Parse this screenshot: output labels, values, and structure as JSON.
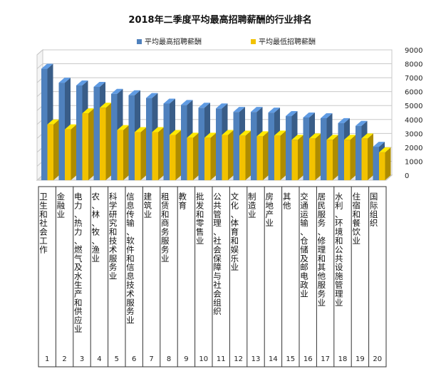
{
  "chart_data": {
    "type": "bar",
    "title": "2018年二季度平均最高招聘薪酬的行业排名",
    "categories": [
      "卫生和社会工作",
      "金融业",
      "电力、热力、燃气及水生产和供应业",
      "农、林、牧、渔业",
      "科学研究和技术服务业",
      "信息传输、软件和信息技术服务业",
      "建筑业",
      "租赁和商务服务业",
      "教育",
      "批发和零售业",
      "公共管理、社会保障与社会组织",
      "文化、体育和娱乐业",
      "制造业",
      "房地产业",
      "其他",
      "交通运输、仓储及邮电政业",
      "居民服务、修理和其他服务业",
      "水利、环境和公共设施管理业",
      "住宿和餐饮业",
      "国际组织"
    ],
    "ranks": [
      "1",
      "2",
      "3",
      "4",
      "5",
      "6",
      "7",
      "8",
      "9",
      "10",
      "11",
      "12",
      "13",
      "14",
      "15",
      "16",
      "17",
      "18",
      "19",
      "20"
    ],
    "series": [
      {
        "name": "平均最高招聘薪酬",
        "color": "#4f81bd",
        "values": [
          8000,
          7000,
          6800,
          6700,
          6200,
          6100,
          5900,
          5500,
          5400,
          5200,
          5150,
          4900,
          4900,
          4850,
          4600,
          4500,
          4450,
          4100,
          3900,
          2400
        ]
      },
      {
        "name": "平均最低招聘薪酬",
        "color": "#f2c200",
        "values": [
          4000,
          3650,
          4800,
          5200,
          3600,
          3450,
          3450,
          3250,
          3050,
          3050,
          3250,
          3200,
          3150,
          3200,
          2900,
          3000,
          2900,
          2900,
          3000,
          2000
        ]
      }
    ],
    "ylim": [
      0,
      9000
    ],
    "yticks": [
      "0",
      "1000",
      "2000",
      "3000",
      "4000",
      "5000",
      "6000",
      "7000",
      "8000",
      "9000"
    ],
    "legend_position": "top",
    "grid": true,
    "xlabel": "",
    "ylabel": ""
  }
}
